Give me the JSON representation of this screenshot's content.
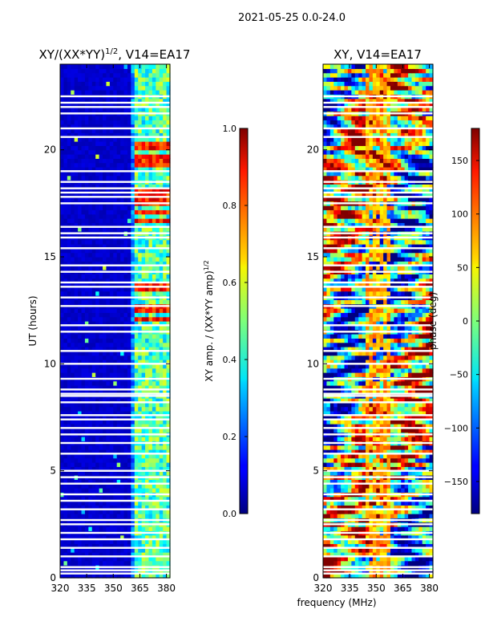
{
  "figure": {
    "suptitle": "2021-05-25 0.0-24.0",
    "shared_xlabel": "frequency (MHz)"
  },
  "chart_data": [
    {
      "type": "heatmap",
      "title": "XY/(XX*YY)^1/2, V14=EA17",
      "title_main": "XY/(XX*YY)",
      "title_exp": "1/2",
      "title_tail": ", V14=EA17",
      "xlabel": "",
      "ylabel": "UT (hours)",
      "xlim": [
        320,
        382
      ],
      "ylim": [
        0,
        24
      ],
      "xticks": [
        "320",
        "335",
        "350",
        "365",
        "380"
      ],
      "xtick_values": [
        320,
        335,
        350,
        365,
        380
      ],
      "yticks": [
        "0",
        "5",
        "10",
        "15",
        "20"
      ],
      "ytick_values": [
        0,
        5,
        10,
        15,
        20
      ],
      "colorbar": {
        "label": "XY amp. / (XX*YY amp)^1/2",
        "label_main": "XY amp. / (XX*YY amp)",
        "label_exp": "1/2",
        "range": [
          0.0,
          1.0
        ],
        "ticks": [
          "0.0",
          "0.2",
          "0.4",
          "0.6",
          "0.8",
          "1.0"
        ],
        "tick_values": [
          0.0,
          0.2,
          0.4,
          0.6,
          0.8,
          1.0
        ]
      },
      "band_columns_mhz": [
        362,
        365,
        367,
        369,
        371,
        373,
        375,
        377,
        379,
        381
      ],
      "bright_hours": [
        13.5,
        12.0,
        12.5,
        16.6,
        17.0,
        17.5,
        17.9,
        19.3,
        19.6,
        20.0,
        20.2
      ]
    },
    {
      "type": "heatmap",
      "title": "XY, V14=EA17",
      "xlabel": "frequency (MHz)",
      "ylabel": "",
      "xlim": [
        320,
        382
      ],
      "ylim": [
        0,
        24
      ],
      "xticks": [
        "320",
        "335",
        "350",
        "365",
        "380"
      ],
      "xtick_values": [
        320,
        335,
        350,
        365,
        380
      ],
      "yticks": [
        "0",
        "5",
        "10",
        "15",
        "20"
      ],
      "ytick_values": [
        0,
        5,
        10,
        15,
        20
      ],
      "colorbar": {
        "label": "phase (deg)",
        "range": [
          -180,
          180
        ],
        "ticks": [
          "−150",
          "−100",
          "−50",
          "0",
          "50",
          "100",
          "150"
        ],
        "tick_values": [
          -150,
          -100,
          -50,
          0,
          50,
          100,
          150
        ]
      }
    }
  ],
  "flagged_hours": [
    0.2,
    0.35,
    0.5,
    1.0,
    1.4,
    1.8,
    2.1,
    2.5,
    2.7,
    3.2,
    3.6,
    3.9,
    4.4,
    4.7,
    5.0,
    5.8,
    6.3,
    6.7,
    7.0,
    7.4,
    7.6,
    8.2,
    8.5,
    8.6,
    8.8,
    9.3,
    10.0,
    10.6,
    11.5,
    11.8,
    12.7,
    13.1,
    13.6,
    13.8,
    14.3,
    14.6,
    15.4,
    15.9,
    16.1,
    16.4,
    17.5,
    17.8,
    18.0,
    18.2,
    18.5,
    19.0,
    20.6,
    21.0,
    21.7,
    22.0,
    22.2,
    22.5
  ]
}
